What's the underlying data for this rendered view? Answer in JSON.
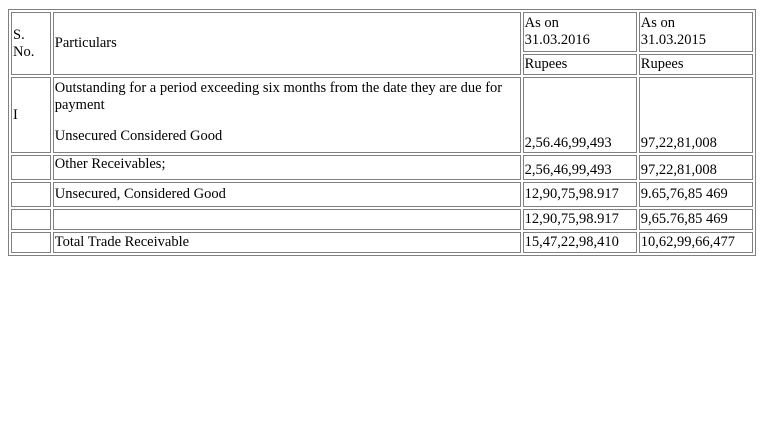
{
  "table": {
    "header": {
      "sno": "S. No.",
      "particulars": "Particulars",
      "col_2016": "As on 31.03.2016",
      "col_2015": "As on 31.03.2015"
    },
    "units": {
      "col_2016": "Rupees",
      "col_2015": "Rupees"
    },
    "rows": [
      {
        "sno": "I",
        "particulars_line1": "Outstanding for a period exceeding six months from the date they are due for payment",
        "particulars_line2": "Unsecured Considered Good",
        "col_2016": "2,56.46,99,493",
        "col_2015": "97,22,81,008"
      },
      {
        "sno": "",
        "particulars": "Other Receivables;",
        "col_2016": "2,56,46,99,493",
        "col_2015": "97,22,81,008"
      },
      {
        "sno": "",
        "particulars": "Unsecured, Considered Good",
        "col_2016": "12,90,75,98.917",
        "col_2015": "9.65,76,85 469"
      },
      {
        "sno": "",
        "particulars": "",
        "col_2016": "12,90,75,98.917",
        "col_2015": "9,65.76,85 469"
      },
      {
        "sno": "",
        "particulars": "Total Trade Receivable",
        "col_2016": "15,47,22,98,410",
        "col_2015": "10,62,99,66,477"
      }
    ]
  }
}
